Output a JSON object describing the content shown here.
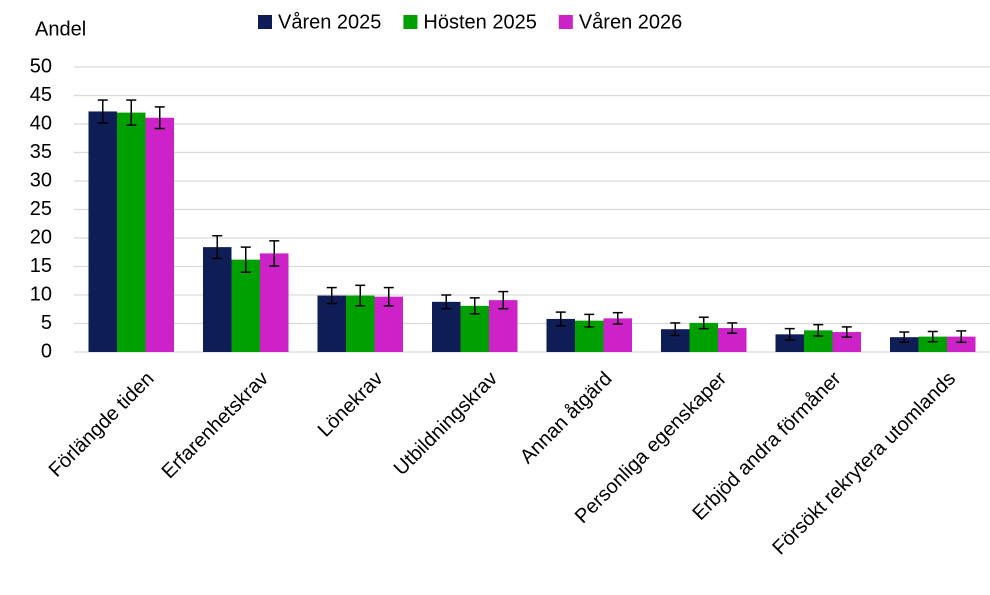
{
  "chart_data": {
    "type": "bar",
    "y_label": "Andel",
    "categories": [
      "Förlängde tiden",
      "Erfarenhetskrav",
      "Lönekrav",
      "Utbildningskrav",
      "Annan åtgärd",
      "Personliga egenskaper",
      "Erbjöd andra förmåner",
      "Försökt rekrytera utomlands"
    ],
    "series": [
      {
        "name": "Våren 2025",
        "color": "#0f1d57",
        "values": [
          42.2,
          18.4,
          9.9,
          8.8,
          5.8,
          4.0,
          3.1,
          2.6
        ],
        "errors": [
          2.0,
          2.0,
          1.4,
          1.2,
          1.2,
          1.1,
          1.0,
          0.9
        ]
      },
      {
        "name": "Hösten 2025",
        "color": "#00a000",
        "values": [
          42.0,
          16.2,
          9.9,
          8.1,
          5.5,
          5.1,
          3.8,
          2.7
        ],
        "errors": [
          2.2,
          2.2,
          1.8,
          1.4,
          1.1,
          1.0,
          1.0,
          0.9
        ]
      },
      {
        "name": "Våren 2026",
        "color": "#cc22c8",
        "values": [
          41.1,
          17.3,
          9.7,
          9.1,
          5.9,
          4.2,
          3.5,
          2.7
        ],
        "errors": [
          1.9,
          2.2,
          1.6,
          1.5,
          1.0,
          0.9,
          0.9,
          1.0
        ]
      }
    ],
    "ylim": [
      0,
      50
    ],
    "yticks": [
      0,
      5,
      10,
      15,
      20,
      25,
      30,
      35,
      40,
      45,
      50
    ],
    "grid": true,
    "legend": "top"
  }
}
